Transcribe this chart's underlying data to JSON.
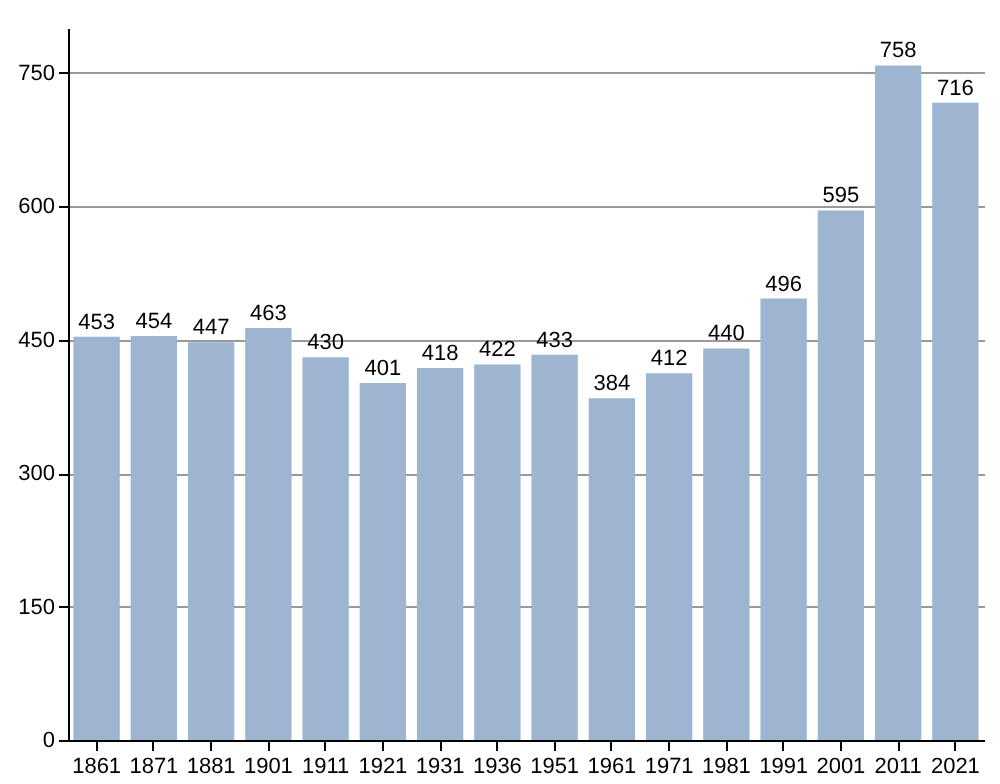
{
  "chart_data": {
    "type": "bar",
    "categories": [
      "1861",
      "1871",
      "1881",
      "1901",
      "1911",
      "1921",
      "1931",
      "1936",
      "1951",
      "1961",
      "1971",
      "1981",
      "1991",
      "2001",
      "2011",
      "2021"
    ],
    "values": [
      453,
      454,
      447,
      463,
      430,
      401,
      418,
      422,
      433,
      384,
      412,
      440,
      496,
      595,
      758,
      716
    ],
    "color": "#9db5d0",
    "ylim": [
      0,
      800
    ],
    "yticks": [
      0,
      150,
      300,
      450,
      600,
      750
    ],
    "grid": "y",
    "data_labels": true
  }
}
